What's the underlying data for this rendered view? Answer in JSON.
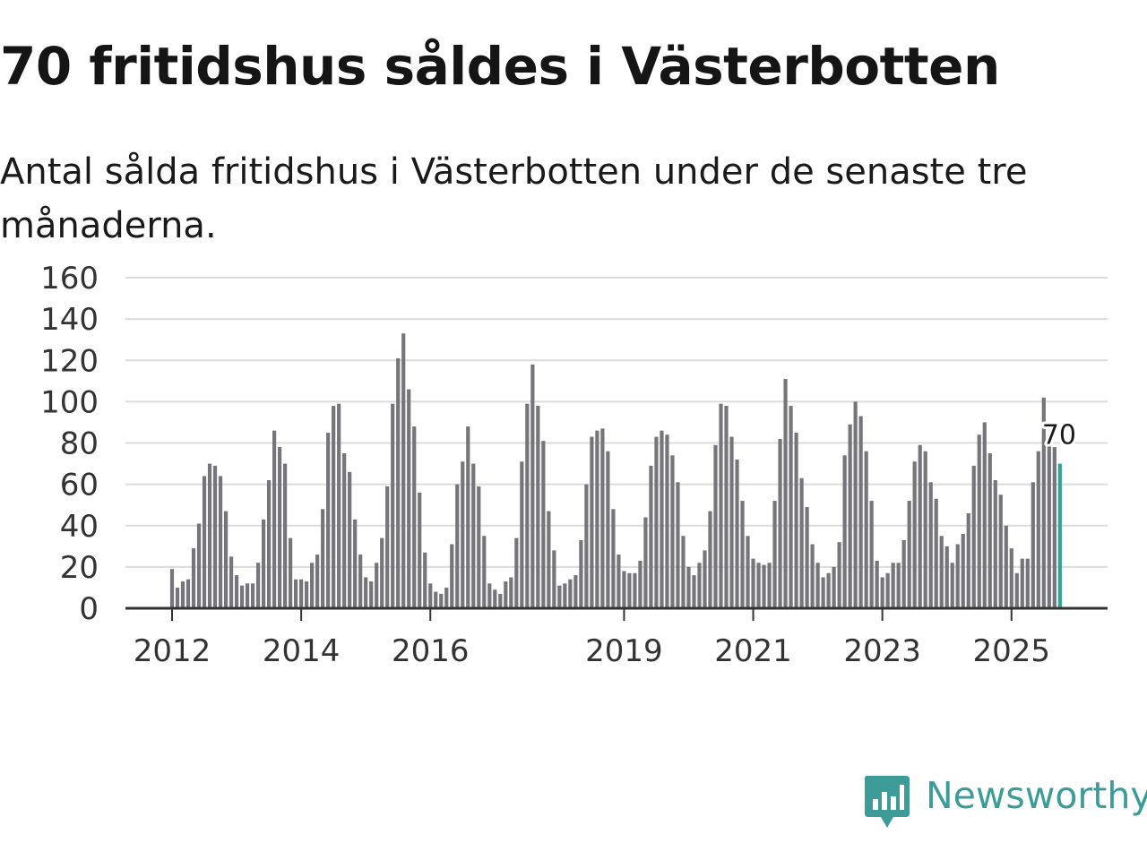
{
  "title": "70 fritidshus såldes i Västerbotten",
  "subtitle": "Antal sålda fritidshus i Västerbotten under de senaste tre månaderna.",
  "brand": {
    "name": "Newsworthy",
    "color": "#3d9c98",
    "icon": "newsworthy-logo-icon"
  },
  "colors": {
    "bar": "#76757b",
    "highlight": "#2fa49c",
    "grid": "#dcdcdc",
    "axis": "#333333"
  },
  "chart_data": {
    "type": "bar",
    "title": "70 fritidshus såldes i Västerbotten",
    "xlabel": "",
    "ylabel": "",
    "ylim": [
      0,
      160
    ],
    "yticks": [
      0,
      20,
      40,
      60,
      80,
      100,
      120,
      140,
      160
    ],
    "xticks": [
      {
        "label": "2012",
        "index": 0
      },
      {
        "label": "2014",
        "index": 24
      },
      {
        "label": "2016",
        "index": 48
      },
      {
        "label": "2019",
        "index": 84
      },
      {
        "label": "2021",
        "index": 108
      },
      {
        "label": "2023",
        "index": 132
      },
      {
        "label": "2025",
        "index": 156
      }
    ],
    "start": "2012-01",
    "highlight_label": "70",
    "values": [
      19,
      10,
      13,
      14,
      29,
      41,
      64,
      70,
      69,
      64,
      47,
      25,
      16,
      11,
      12,
      12,
      22,
      43,
      62,
      86,
      78,
      70,
      34,
      14,
      14,
      13,
      22,
      26,
      48,
      85,
      98,
      99,
      75,
      66,
      43,
      26,
      15,
      13,
      22,
      34,
      59,
      99,
      121,
      133,
      106,
      88,
      56,
      27,
      12,
      8,
      7,
      10,
      31,
      60,
      71,
      88,
      70,
      59,
      35,
      12,
      9,
      7,
      13,
      15,
      34,
      71,
      99,
      118,
      98,
      81,
      47,
      28,
      11,
      12,
      14,
      16,
      33,
      60,
      83,
      86,
      87,
      76,
      48,
      26,
      18,
      17,
      17,
      23,
      44,
      69,
      83,
      86,
      84,
      74,
      61,
      35,
      20,
      16,
      22,
      28,
      47,
      79,
      99,
      98,
      83,
      72,
      52,
      35,
      24,
      22,
      21,
      22,
      52,
      82,
      111,
      98,
      85,
      63,
      49,
      31,
      22,
      15,
      17,
      20,
      32,
      74,
      89,
      100,
      93,
      76,
      52,
      23,
      15,
      17,
      22,
      22,
      33,
      52,
      71,
      79,
      76,
      61,
      53,
      35,
      30,
      22,
      31,
      36,
      46,
      69,
      84,
      90,
      75,
      62,
      55,
      40,
      29,
      17,
      24,
      24,
      61,
      76,
      102,
      80,
      78,
      70
    ]
  }
}
